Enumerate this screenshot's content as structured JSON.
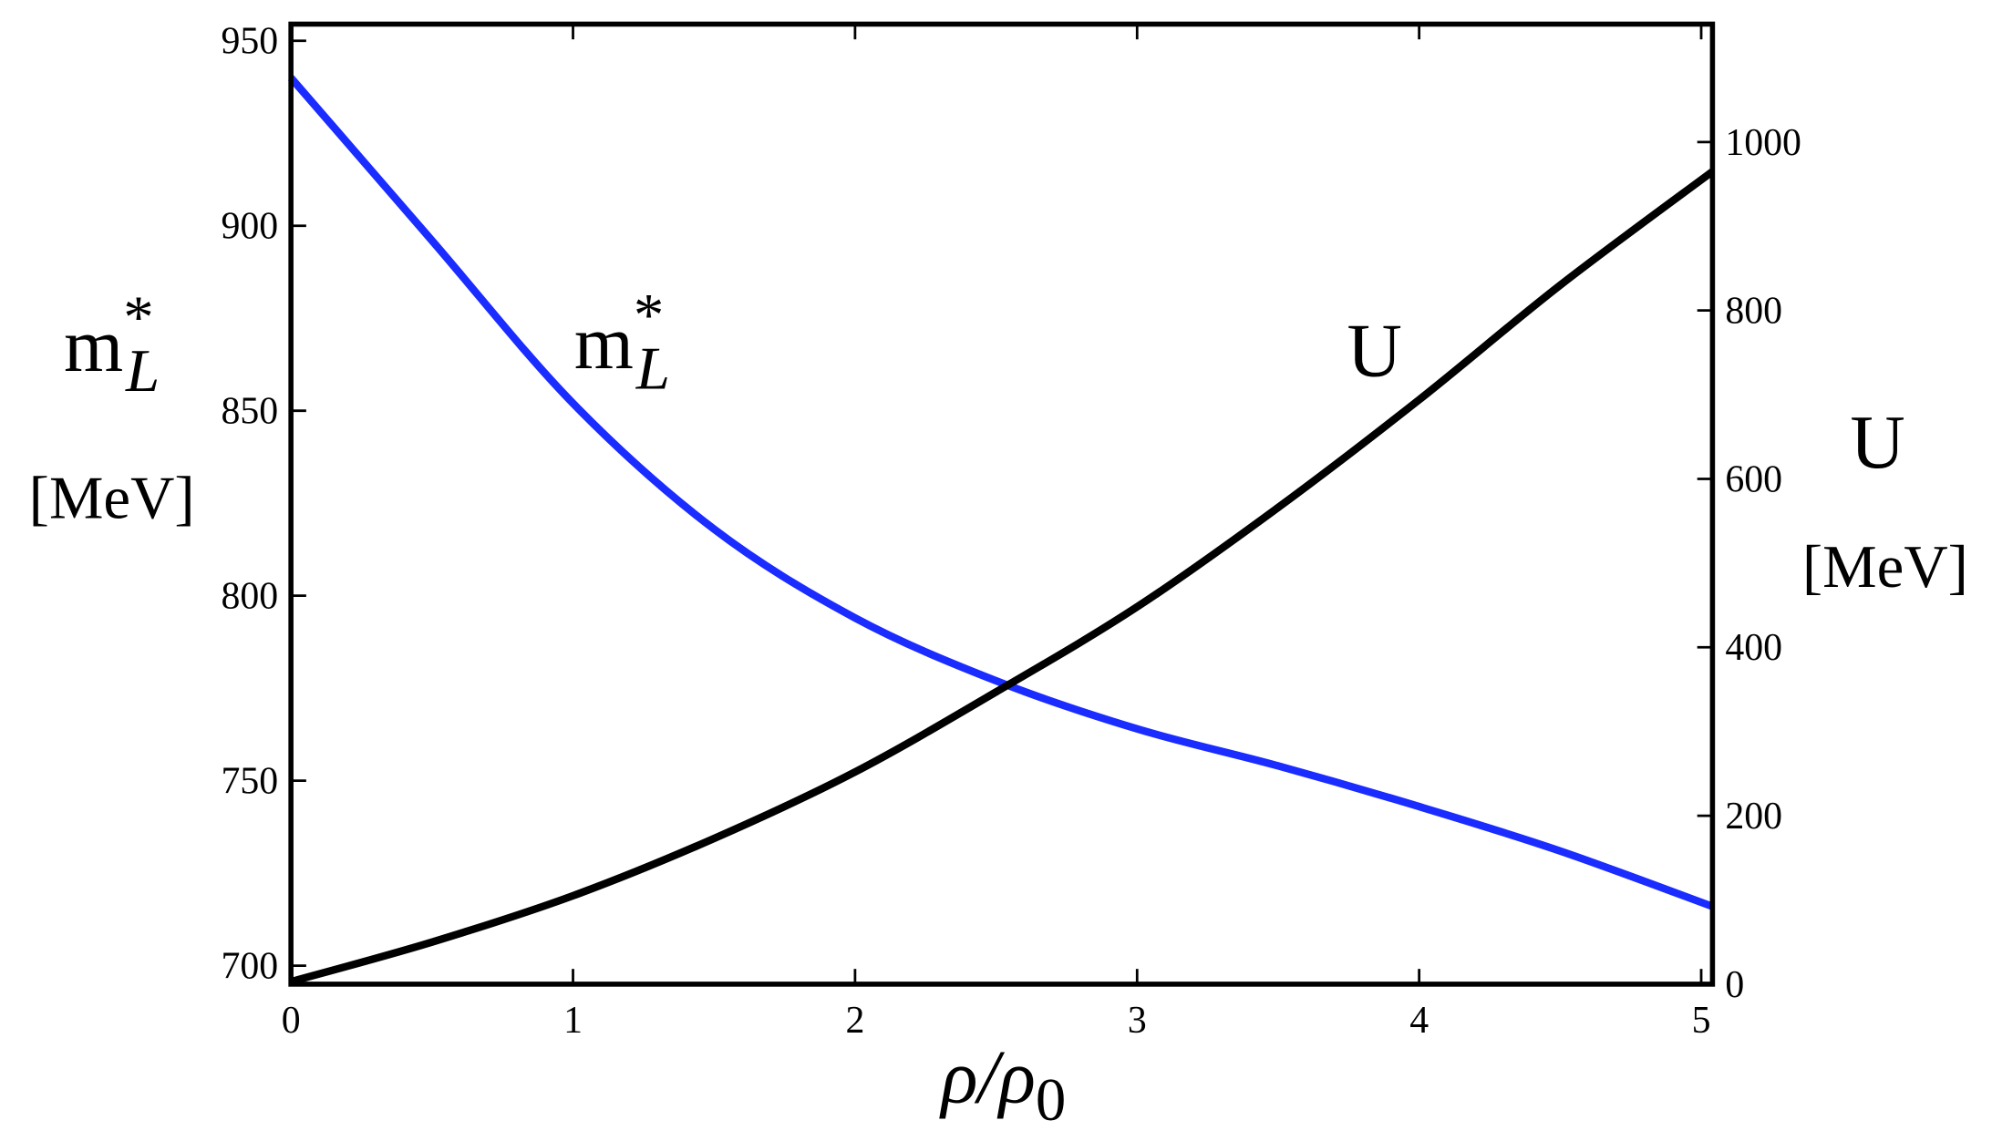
{
  "chart_data": {
    "type": "line",
    "xlabel": {
      "base": "ρ/ρ",
      "sub": "0"
    },
    "ylabel": {
      "base": "m",
      "sup": "*",
      "sub": "L",
      "unit": "[MeV]"
    },
    "y2label": {
      "base": "U",
      "unit": "[MeV]"
    },
    "x": [
      0,
      0.5,
      1,
      1.5,
      2,
      2.5,
      3,
      3.5,
      4,
      4.5,
      5.04
    ],
    "series": [
      {
        "name": {
          "base": "m",
          "sup": "*",
          "sub": "L"
        },
        "color": "#1a2cff",
        "axis": "y",
        "values": [
          940,
          896,
          852,
          818,
          794,
          777,
          764,
          754,
          743,
          731,
          716
        ]
      },
      {
        "name": {
          "base": "U"
        },
        "color": "#000000",
        "axis": "y2",
        "values": [
          3,
          50,
          105,
          173,
          252,
          347,
          448,
          566,
          694,
          830,
          965
        ]
      }
    ],
    "xlim": [
      0,
      5.04
    ],
    "xticks": [
      0,
      1,
      2,
      3,
      4,
      5
    ],
    "ylim": [
      695,
      954.5
    ],
    "yticks": [
      700,
      750,
      800,
      850,
      900,
      950
    ],
    "y2lim": [
      0,
      1140
    ],
    "y2ticks": [
      0,
      200,
      400,
      600,
      800,
      1000
    ]
  }
}
